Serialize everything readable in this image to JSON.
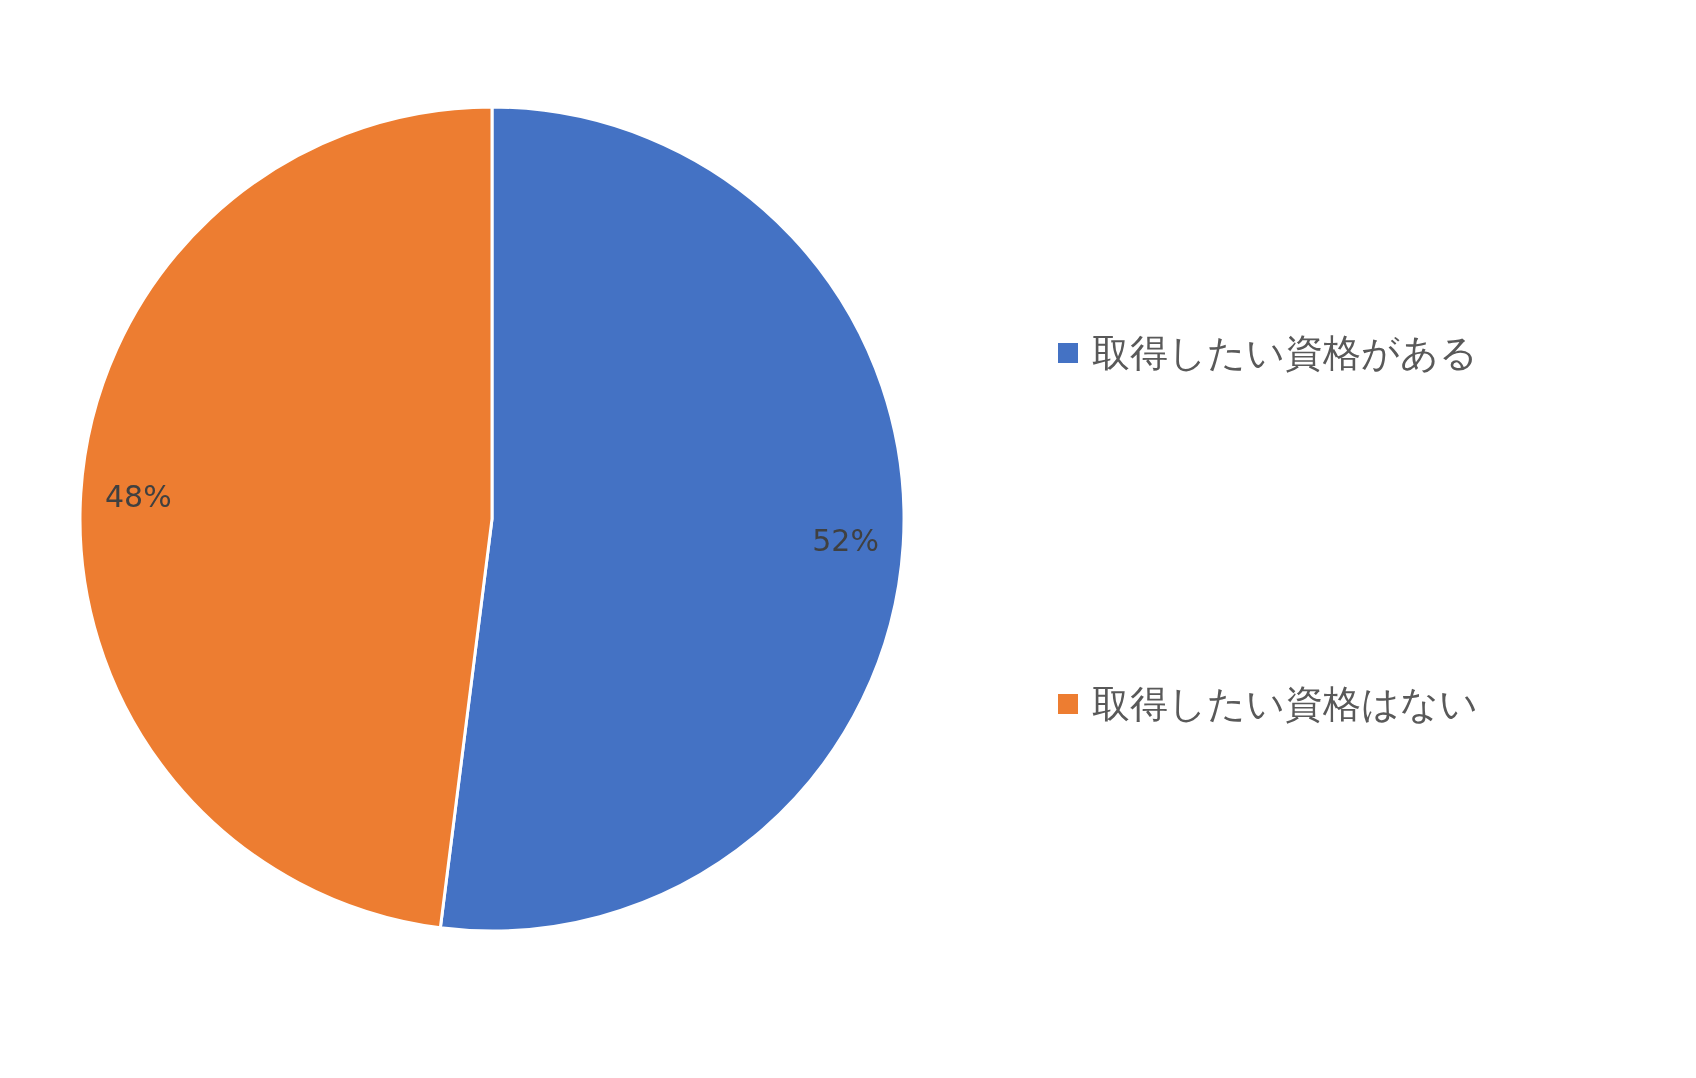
{
  "chart_data": {
    "type": "pie",
    "categories": [
      "取得したい資格がある",
      "取得したい資格はない"
    ],
    "values": [
      52,
      48
    ],
    "value_labels": [
      "52%",
      "48%"
    ],
    "colors": [
      "#4472c4",
      "#ed7d31"
    ],
    "legend": "right"
  }
}
